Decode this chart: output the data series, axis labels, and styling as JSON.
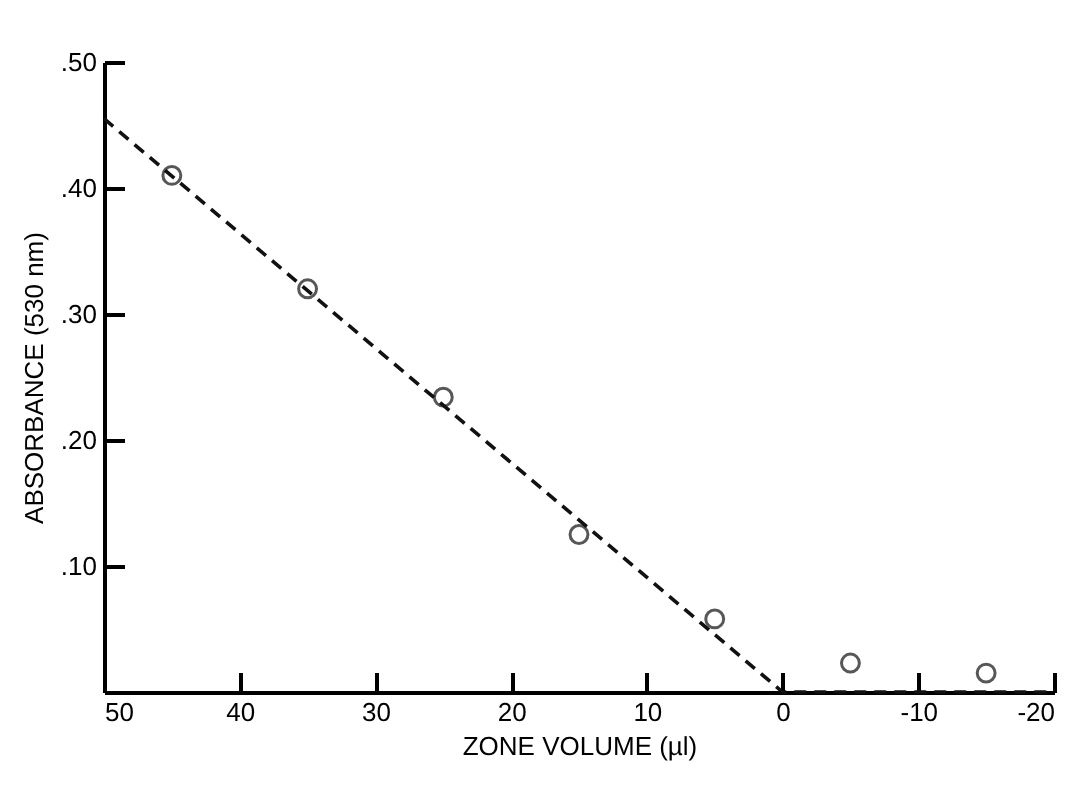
{
  "chart_data": {
    "type": "scatter",
    "xlabel": "ZONE VOLUME (µl)",
    "ylabel": "ABSORBANCE  (530 nm)",
    "xlim": [
      50,
      -20
    ],
    "xticks": [
      50,
      40,
      30,
      20,
      10,
      0,
      -10,
      -20
    ],
    "ylim": [
      0,
      0.5
    ],
    "yticks": [
      {
        "value": 0.1,
        "label": ".10"
      },
      {
        "value": 0.2,
        "label": ".20"
      },
      {
        "value": 0.3,
        "label": ".30"
      },
      {
        "value": 0.4,
        "label": ".40"
      },
      {
        "value": 0.5,
        "label": ".50"
      }
    ],
    "grid": false,
    "series": [
      {
        "color": "#111111",
        "marker": "circle",
        "x": [
          45,
          35,
          25,
          15,
          5,
          -5,
          -15
        ],
        "values": [
          0.41,
          0.32,
          0.234,
          0.125,
          0.058,
          0.023,
          0.015
        ]
      },
      {
        "type": "line",
        "color": "#111111",
        "marker": "none",
        "line_style": "dashed",
        "x": [
          50,
          0,
          -20
        ],
        "values": [
          0.455,
          0,
          0
        ]
      }
    ]
  }
}
